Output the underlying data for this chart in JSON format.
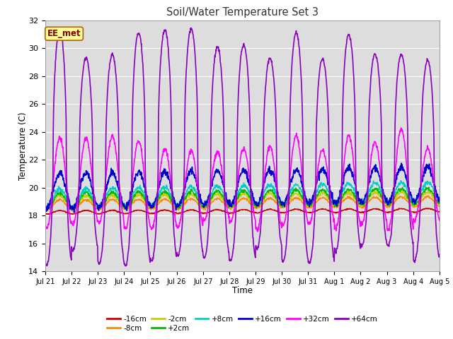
{
  "title": "Soil/Water Temperature Set 3",
  "xlabel": "Time",
  "ylabel": "Temperature (C)",
  "ylim": [
    14,
    32
  ],
  "xlim": [
    0,
    15
  ],
  "background_color": "#ffffff",
  "plot_bg_color": "#dddddd",
  "annotation_text": "EE_met",
  "annotation_bg": "#ffff99",
  "annotation_border": "#aa6600",
  "annotation_text_color": "#880000",
  "xtick_labels": [
    "Jul 21",
    "Jul 22",
    "Jul 23",
    "Jul 24",
    "Jul 25",
    "Jul 26",
    "Jul 27",
    "Jul 28",
    "Jul 29",
    "Jul 30",
    "Jul 31",
    "Aug 1",
    "Aug 2",
    "Aug 3",
    "Aug 4",
    "Aug 5"
  ],
  "series": [
    {
      "label": "-16cm",
      "color": "#cc0000",
      "lw": 1.0
    },
    {
      "label": "-8cm",
      "color": "#ff8800",
      "lw": 1.0
    },
    {
      "label": "-2cm",
      "color": "#cccc00",
      "lw": 1.0
    },
    {
      "label": "+2cm",
      "color": "#00bb00",
      "lw": 1.0
    },
    {
      "label": "+8cm",
      "color": "#00cccc",
      "lw": 1.0
    },
    {
      "label": "+16cm",
      "color": "#0000cc",
      "lw": 1.2
    },
    {
      "label": "+32cm",
      "color": "#ff00ff",
      "lw": 1.2
    },
    {
      "label": "+64cm",
      "color": "#8800bb",
      "lw": 1.2
    }
  ],
  "n_days": 15,
  "points_per_day": 96,
  "yticks": [
    14,
    16,
    18,
    20,
    22,
    24,
    26,
    28,
    30,
    32
  ]
}
